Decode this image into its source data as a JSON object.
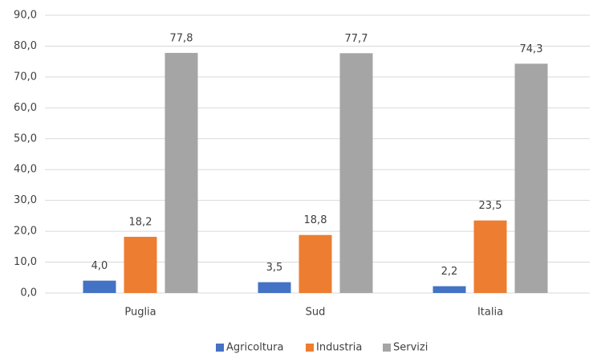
{
  "chart_data": {
    "type": "bar",
    "categories": [
      "Puglia",
      "Sud",
      "Italia"
    ],
    "series": [
      {
        "name": "Agricoltura",
        "color": "#4472c4",
        "values": [
          4.0,
          3.5,
          2.2
        ],
        "value_labels": [
          "4,0",
          "3,5",
          "2,2"
        ]
      },
      {
        "name": "Industria",
        "color": "#ed7d31",
        "values": [
          18.2,
          18.8,
          23.5
        ],
        "value_labels": [
          "18,2",
          "18,8",
          "23,5"
        ]
      },
      {
        "name": "Servizi",
        "color": "#a5a5a5",
        "values": [
          77.8,
          77.7,
          74.3
        ],
        "value_labels": [
          "77,8",
          "77,7",
          "74,3"
        ]
      }
    ],
    "ylim": [
      0,
      90
    ],
    "yticks": [
      {
        "value": 0,
        "label": "0,0"
      },
      {
        "value": 10,
        "label": "10,0"
      },
      {
        "value": 20,
        "label": "20,0"
      },
      {
        "value": 30,
        "label": "30,0"
      },
      {
        "value": 40,
        "label": "40,0"
      },
      {
        "value": 50,
        "label": "50,0"
      },
      {
        "value": 60,
        "label": "60,0"
      },
      {
        "value": 70,
        "label": "70,0"
      },
      {
        "value": 80,
        "label": "80,0"
      },
      {
        "value": 90,
        "label": "90,0"
      }
    ],
    "grid": true,
    "legend": "bottom"
  }
}
